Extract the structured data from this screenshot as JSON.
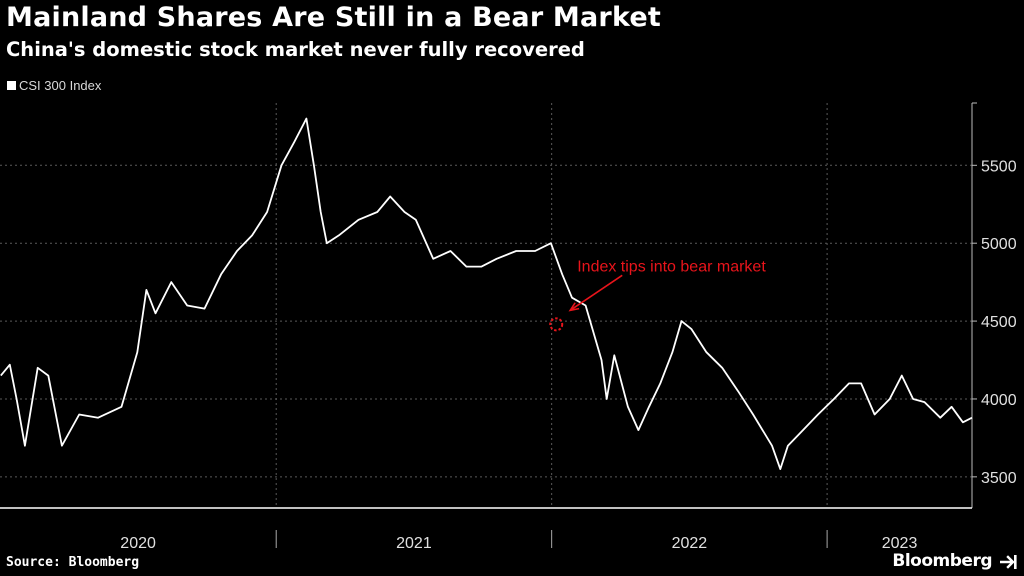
{
  "header": {
    "title": "Mainland Shares Are Still in a Bear Market",
    "subtitle": "China's domestic stock market never fully recovered"
  },
  "footer": {
    "source": "Source: Bloomberg",
    "brand": "Bloomberg",
    "brand_icon": "arrow-icon"
  },
  "colors": {
    "background": "#000000",
    "line": "#ffffff",
    "annotation": "#e8141b",
    "grid": "#5a5a5a"
  },
  "chart_data": {
    "type": "line",
    "title": "Mainland Shares Are Still in a Bear Market",
    "subtitle": "China's domestic stock market never fully recovered",
    "legend": {
      "placement": "top-left",
      "entries": [
        "CSI 300 Index"
      ]
    },
    "grid": true,
    "y_axis": {
      "position": "right",
      "ticks": [
        3500,
        4000,
        4500,
        5000,
        5500
      ],
      "ylim": [
        3300,
        5900
      ]
    },
    "x_axis": {
      "ticks": [
        "2020",
        "2021",
        "2022",
        "2023"
      ],
      "xlim": [
        "2020-01-01",
        "2023-07-12"
      ]
    },
    "series": [
      {
        "name": "CSI 300 Index",
        "x": [
          "2020-01-02",
          "2020-01-14",
          "2020-01-23",
          "2020-02-03",
          "2020-02-20",
          "2020-03-05",
          "2020-03-23",
          "2020-04-15",
          "2020-05-10",
          "2020-06-10",
          "2020-07-01",
          "2020-07-13",
          "2020-07-25",
          "2020-08-15",
          "2020-09-05",
          "2020-09-28",
          "2020-10-20",
          "2020-11-10",
          "2020-11-30",
          "2020-12-20",
          "2021-01-08",
          "2021-01-25",
          "2021-02-10",
          "2021-02-20",
          "2021-03-01",
          "2021-03-09",
          "2021-03-25",
          "2021-04-20",
          "2021-05-15",
          "2021-06-01",
          "2021-06-20",
          "2021-07-05",
          "2021-07-28",
          "2021-08-20",
          "2021-09-10",
          "2021-09-30",
          "2021-10-20",
          "2021-11-15",
          "2021-12-10",
          "2021-12-31",
          "2022-01-15",
          "2022-01-28",
          "2022-02-15",
          "2022-03-08",
          "2022-03-15",
          "2022-03-25",
          "2022-04-12",
          "2022-04-26",
          "2022-05-10",
          "2022-05-25",
          "2022-06-10",
          "2022-06-22",
          "2022-07-05",
          "2022-07-25",
          "2022-08-15",
          "2022-09-05",
          "2022-09-25",
          "2022-10-20",
          "2022-10-31",
          "2022-11-10",
          "2022-11-30",
          "2022-12-20",
          "2023-01-10",
          "2023-01-30",
          "2023-02-15",
          "2023-03-05",
          "2023-03-25",
          "2023-04-10",
          "2023-04-25",
          "2023-05-10",
          "2023-05-31",
          "2023-06-15",
          "2023-06-30",
          "2023-07-12"
        ],
        "values": [
          4150,
          4220,
          4000,
          3700,
          4200,
          4150,
          3700,
          3900,
          3880,
          3950,
          4300,
          4700,
          4550,
          4750,
          4600,
          4580,
          4800,
          4950,
          5050,
          5200,
          5500,
          5650,
          5800,
          5500,
          5200,
          5000,
          5050,
          5150,
          5200,
          5300,
          5200,
          5150,
          4900,
          4950,
          4850,
          4850,
          4900,
          4950,
          4950,
          5000,
          4800,
          4650,
          4600,
          4250,
          4000,
          4280,
          3950,
          3800,
          3950,
          4100,
          4300,
          4500,
          4450,
          4300,
          4200,
          4050,
          3900,
          3700,
          3550,
          3700,
          3800,
          3900,
          4000,
          4100,
          4100,
          3900,
          4000,
          4150,
          4000,
          3980,
          3880,
          3950,
          3850,
          3880
        ]
      }
    ],
    "annotations": [
      {
        "text": "Index tips into bear market",
        "x": "2022-01-15",
        "y": 4800
      }
    ]
  }
}
